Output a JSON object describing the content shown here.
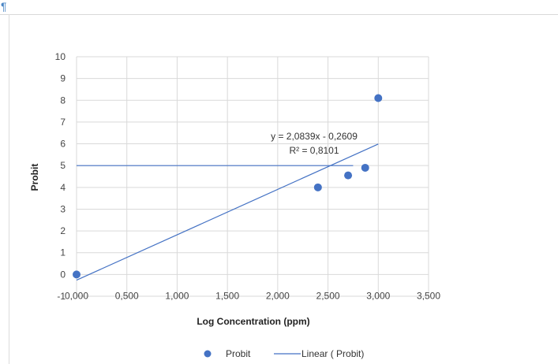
{
  "document": {
    "paragraph_mark": "¶"
  },
  "chart_data": {
    "type": "scatter",
    "xlabel": "Log Concentration (ppm)",
    "ylabel": "Probit",
    "xlim": [
      0,
      3.5
    ],
    "ylim": [
      -1,
      10
    ],
    "x_ticks": [
      "0,000",
      "0,500",
      "1,000",
      "1,500",
      "2,000",
      "2,500",
      "3,000",
      "3,500"
    ],
    "y_ticks": [
      "-1",
      "0",
      "1",
      "2",
      "3",
      "4",
      "5",
      "6",
      "7",
      "8",
      "9",
      "10"
    ],
    "grid": "vertical and horizontal",
    "series": [
      {
        "name": "Probit",
        "kind": "points",
        "color": "#4472c4",
        "points": [
          {
            "x": 0.0,
            "y": 0.0
          },
          {
            "x": 2.4,
            "y": 4.0
          },
          {
            "x": 2.7,
            "y": 4.55
          },
          {
            "x": 2.87,
            "y": 4.9
          },
          {
            "x": 3.0,
            "y": 8.1
          }
        ]
      },
      {
        "name": "Linear ( Probit)",
        "kind": "trendline",
        "color": "#4472c4",
        "slope": 2.0839,
        "intercept": -0.2609,
        "x_range": [
          0,
          3.0
        ]
      }
    ],
    "reference_line": {
      "y": 5,
      "x_range": [
        0,
        2.75
      ],
      "color": "#4472c4"
    },
    "trendline_equation": "y = 2,0839x - 0,2609",
    "trendline_r2": "R² = 0,8101",
    "legend": {
      "position": "bottom",
      "items": [
        {
          "label": "Probit",
          "marker": "dot"
        },
        {
          "label": "Linear ( Probit)",
          "marker": "line"
        }
      ]
    }
  }
}
